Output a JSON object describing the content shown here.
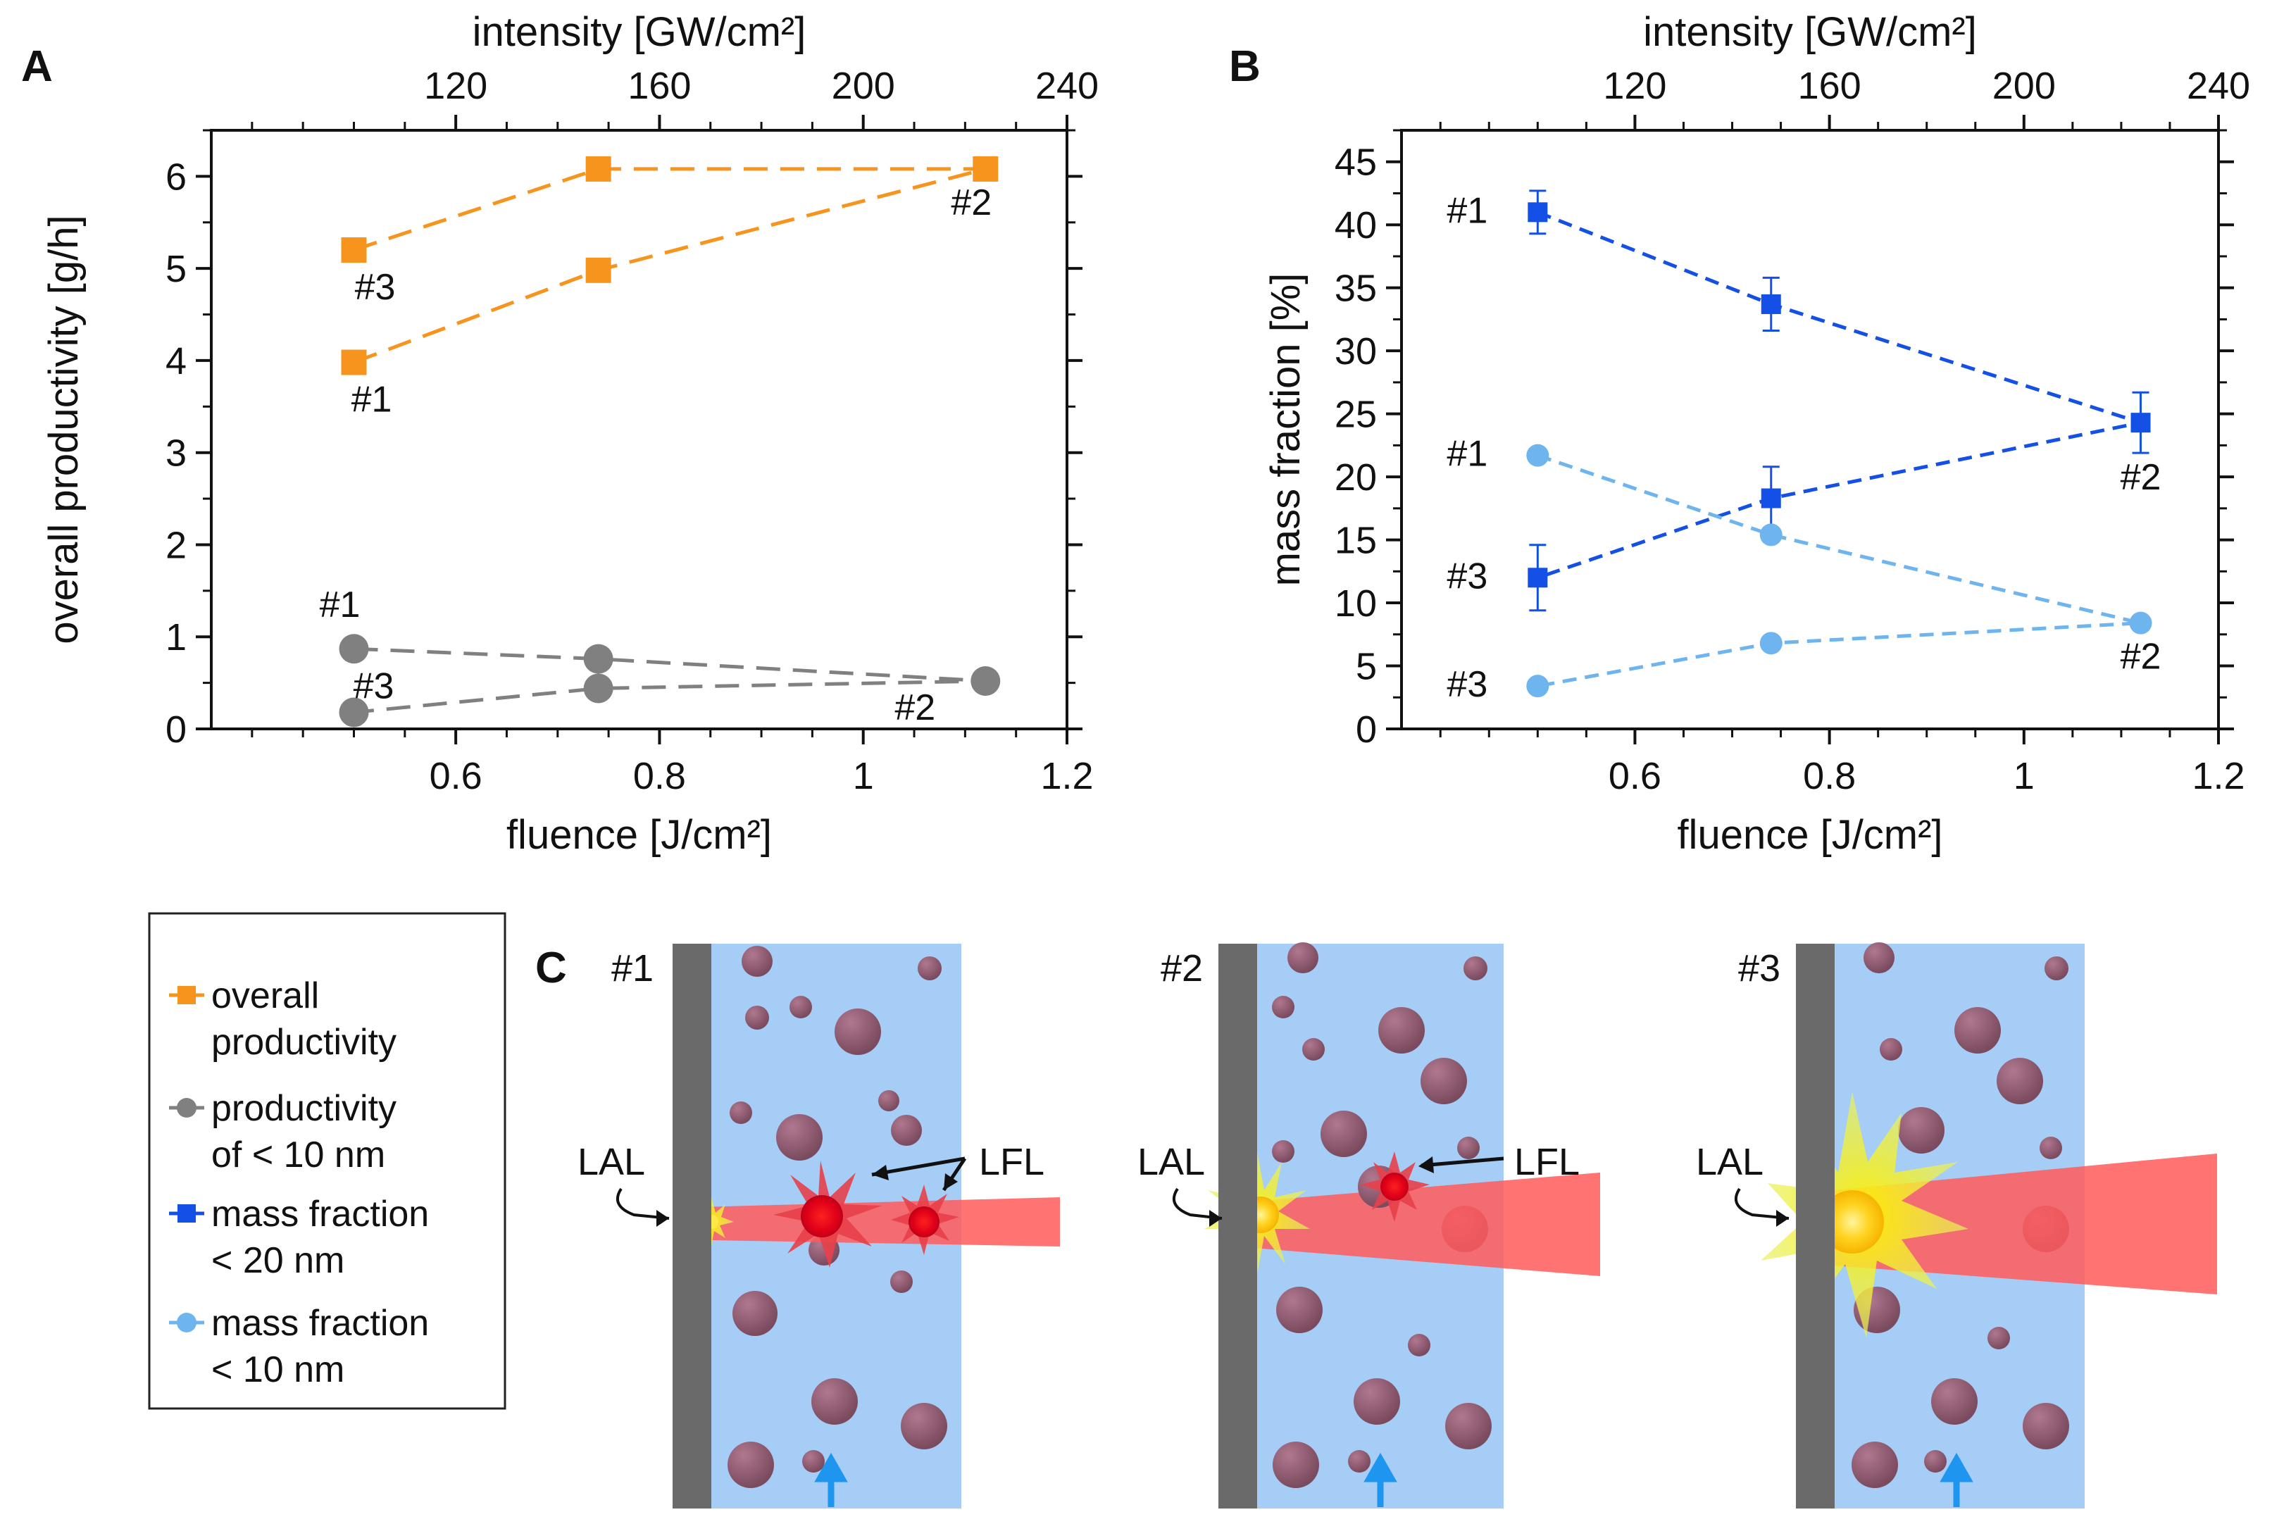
{
  "chart_data": [
    {
      "panel": "A",
      "type": "line",
      "xlabel": "fluence [J/cm²]",
      "x2label": "intensity  [GW/cm²]",
      "ylabel": "overall productivity [g/h]",
      "xlim": [
        0.36,
        1.2
      ],
      "ylim": [
        0,
        6.5
      ],
      "x_ticks": [
        0.6,
        0.8,
        1,
        1.2
      ],
      "x_tick_labels": [
        "0.6",
        "0.8",
        "1",
        "1.2"
      ],
      "x2_ticks": [
        120,
        160,
        200,
        240
      ],
      "x2_tick_labels": [
        "120",
        "160",
        "200",
        "240"
      ],
      "x2_ratio": 200,
      "y_ticks": [
        0,
        1,
        2,
        3,
        4,
        5,
        6
      ],
      "y_tick_labels": [
        "0",
        "1",
        "2",
        "3",
        "4",
        "5",
        "6"
      ],
      "series": [
        {
          "name": "overall productivity",
          "color": "#f7941d",
          "marker": "square",
          "points": [
            {
              "x": 0.5,
              "y": 5.2,
              "label": "#3"
            },
            {
              "x": 0.74,
              "y": 6.08,
              "label": ""
            },
            {
              "x": 1.12,
              "y": 6.08,
              "label": "#2"
            },
            {
              "x": 0.74,
              "y": 4.98,
              "label": ""
            },
            {
              "x": 0.5,
              "y": 3.98,
              "label": "#1"
            }
          ]
        },
        {
          "name": "productivity of < 10 nm",
          "color": "#808080",
          "marker": "circle",
          "points": [
            {
              "x": 0.5,
              "y": 0.87,
              "label": "#1"
            },
            {
              "x": 0.74,
              "y": 0.76,
              "label": ""
            },
            {
              "x": 1.12,
              "y": 0.52,
              "label": "#2"
            },
            {
              "x": 0.74,
              "y": 0.44,
              "label": ""
            },
            {
              "x": 0.5,
              "y": 0.18,
              "label": "#3"
            }
          ]
        }
      ]
    },
    {
      "panel": "B",
      "type": "line",
      "xlabel": "fluence [J/cm²]",
      "x2label": "intensity  [GW/cm²]",
      "ylabel": "mass fraction [%]",
      "xlim": [
        0.36,
        1.2
      ],
      "ylim": [
        0,
        47.5
      ],
      "x_ticks": [
        0.6,
        0.8,
        1,
        1.2
      ],
      "x_tick_labels": [
        "0.6",
        "0.8",
        "1",
        "1.2"
      ],
      "x2_ticks": [
        120,
        160,
        200,
        240
      ],
      "x2_tick_labels": [
        "120",
        "160",
        "200",
        "240"
      ],
      "x2_ratio": 200,
      "y_ticks": [
        0,
        5,
        10,
        15,
        20,
        25,
        30,
        35,
        40,
        45
      ],
      "y_tick_labels": [
        "0",
        "5",
        "10",
        "15",
        "20",
        "25",
        "30",
        "35",
        "40",
        "45"
      ],
      "series": [
        {
          "name": "mass fraction < 20 nm",
          "color": "#1450e6",
          "marker": "square",
          "points": [
            {
              "x": 0.5,
              "y": 41,
              "err": 1.7,
              "label": "#1"
            },
            {
              "x": 0.74,
              "y": 33.7,
              "err": 2.1,
              "label": ""
            },
            {
              "x": 1.12,
              "y": 24.3,
              "err": 2.4,
              "label": "#2"
            },
            {
              "x": 0.74,
              "y": 18.3,
              "err": 2.5,
              "label": ""
            },
            {
              "x": 0.5,
              "y": 12,
              "err": 2.6,
              "label": "#3"
            }
          ]
        },
        {
          "name": "mass fraction < 10 nm",
          "color": "#6eb4ee",
          "marker": "circle",
          "points": [
            {
              "x": 0.5,
              "y": 21.7,
              "label": "#1"
            },
            {
              "x": 0.74,
              "y": 15.4,
              "label": ""
            },
            {
              "x": 1.12,
              "y": 8.4,
              "label": "#2"
            },
            {
              "x": 0.74,
              "y": 6.8,
              "label": ""
            },
            {
              "x": 0.5,
              "y": 3.4,
              "label": "#3"
            }
          ]
        }
      ]
    }
  ],
  "legend": {
    "items": [
      {
        "line1": "overall",
        "line2": "productivity",
        "color": "#f7941d",
        "marker": "square"
      },
      {
        "line1": "productivity",
        "line2": "of < 10 nm",
        "color": "#808080",
        "marker": "circle"
      },
      {
        "line1": "mass fraction",
        "line2": "< 20 nm",
        "color": "#1450e6",
        "marker": "square"
      },
      {
        "line1": "mass fraction",
        "line2": "< 10 nm",
        "color": "#6eb4ee",
        "marker": "circle"
      }
    ]
  },
  "panel_c": {
    "letter": "C",
    "scenes": [
      {
        "id": "#1",
        "lal": "LAL",
        "lfl": "LFL"
      },
      {
        "id": "#2",
        "lal": "LAL",
        "lfl": "LFL"
      },
      {
        "id": "#3",
        "lal": "LAL",
        "lfl": ""
      }
    ],
    "colors": {
      "target": "#6a6a6a",
      "liquid": "#a5cdf5",
      "particle": "#8c5a6e",
      "beam": "#ff5a5a",
      "flow_arrow": "#1e96f0"
    }
  }
}
